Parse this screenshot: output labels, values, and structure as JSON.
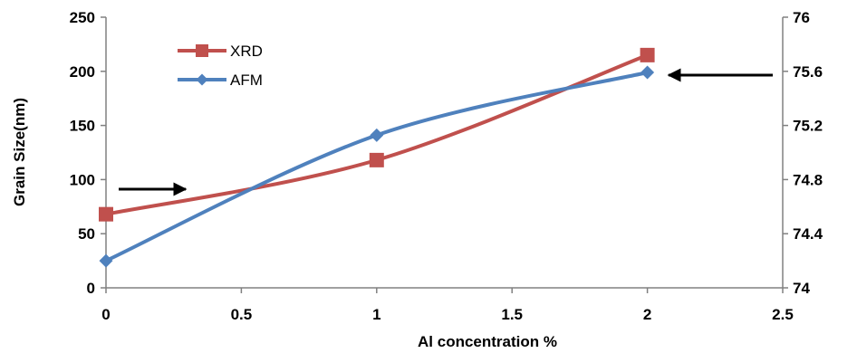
{
  "chart_data": {
    "type": "line",
    "title": "",
    "xlabel": "Al concentration  %",
    "ylabel": "Grain Size(nm)",
    "xlim": [
      0,
      2.5
    ],
    "ylim": [
      0,
      250
    ],
    "y2lim": [
      74,
      76
    ],
    "x_ticks": [
      "0",
      "0.5",
      "1",
      "1.5",
      "2",
      "2.5"
    ],
    "y_ticks": [
      "0",
      "50",
      "100",
      "150",
      "200",
      "250"
    ],
    "y2_ticks": [
      "74",
      "74.4",
      "74.8",
      "75.2",
      "75.6",
      "76"
    ],
    "grid": false,
    "legend_position": "top-left",
    "smooth": true,
    "series": [
      {
        "name": "XRD",
        "color": "#c0504d",
        "marker": "square",
        "x": [
          0,
          1,
          2
        ],
        "values": [
          68,
          118,
          215
        ]
      },
      {
        "name": "AFM",
        "color": "#4f81bd",
        "marker": "diamond",
        "x": [
          0,
          1,
          2
        ],
        "values": [
          25,
          141,
          199
        ]
      }
    ]
  }
}
